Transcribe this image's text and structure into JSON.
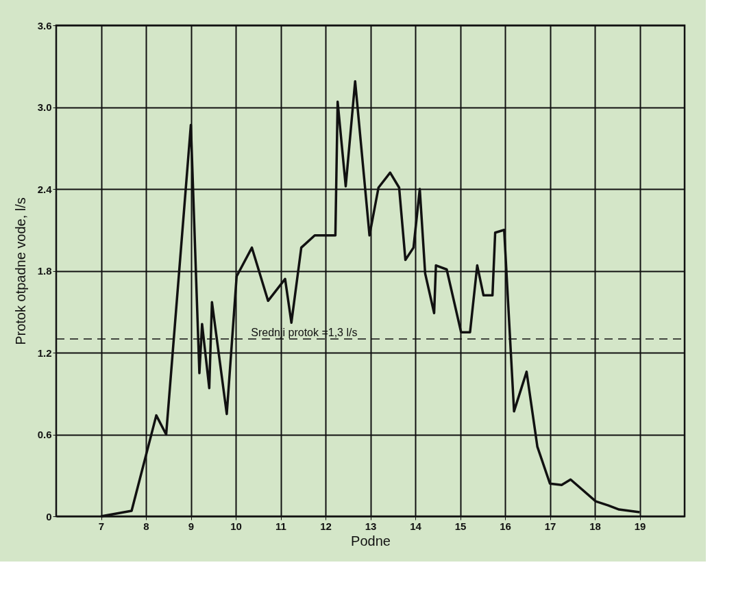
{
  "chart_data": {
    "type": "line",
    "xlabel": "Podne",
    "ylabel": "Protok otpadne vode, l/s",
    "x": [
      7,
      7.68,
      8.23,
      8.45,
      9.0,
      9.19,
      9.25,
      9.41,
      9.47,
      9.8,
      10.02,
      10.36,
      10.72,
      11.1,
      11.24,
      11.46,
      11.76,
      12.22,
      12.27,
      12.45,
      12.66,
      12.98,
      13.18,
      13.44,
      13.64,
      13.78,
      13.96,
      14.1,
      14.22,
      14.42,
      14.46,
      14.7,
      15.02,
      15.22,
      15.38,
      15.52,
      15.72,
      15.78,
      15.98,
      16.2,
      16.48,
      16.72,
      17.0,
      17.26,
      17.46,
      18.02,
      18.3,
      18.54,
      19.0
    ],
    "series": [
      {
        "color": "#111111",
        "values": [
          0,
          0.04,
          0.74,
          0.6,
          2.87,
          1.05,
          1.41,
          0.94,
          1.57,
          0.75,
          1.76,
          1.97,
          1.58,
          1.74,
          1.42,
          1.97,
          2.06,
          2.06,
          3.04,
          2.42,
          3.19,
          2.06,
          2.41,
          2.52,
          2.41,
          1.88,
          1.97,
          2.4,
          1.78,
          1.49,
          1.84,
          1.81,
          1.35,
          1.35,
          1.84,
          1.62,
          1.62,
          2.08,
          2.1,
          0.77,
          1.06,
          0.51,
          0.24,
          0.23,
          0.27,
          0.11,
          0.08,
          0.05,
          0.03
        ]
      }
    ],
    "xlim": [
      6,
      20
    ],
    "xticks": [
      7,
      8,
      9,
      10,
      11,
      12,
      13,
      14,
      15,
      16,
      17,
      18,
      19
    ],
    "ylim": [
      0,
      3.6
    ],
    "yticks": [
      {
        "value": 0,
        "label": "0"
      },
      0.6,
      1.2,
      1.8,
      2.4,
      {
        "value": 3,
        "label": "3.0"
      },
      3.6
    ],
    "ref_lines": [
      {
        "axis": "y",
        "value": 1.3,
        "label": "Srednji protok =1,3 l/s",
        "color": "#111111",
        "line_style": "dashed"
      }
    ],
    "grid": true,
    "marker": "none",
    "line_style": "solid"
  }
}
